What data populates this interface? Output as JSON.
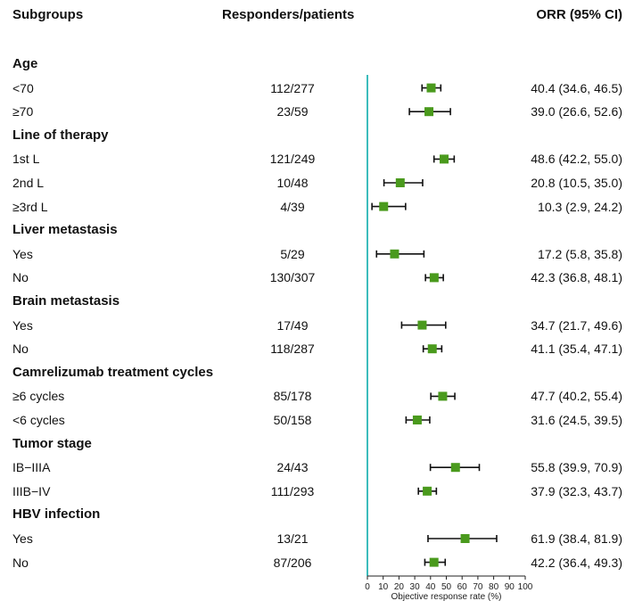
{
  "header": {
    "subgroups": "Subgroups",
    "responders": "Responders/patients",
    "orr": "ORR (95% CI)"
  },
  "colors": {
    "marker": "#4a9a1d",
    "reference_line": "#3cbcbc",
    "whisker": "#111111"
  },
  "chart_data": {
    "type": "forest",
    "xlabel": "Objective response rate (%)",
    "xlim": [
      0,
      100
    ],
    "xticks": [
      "0",
      "10",
      "20",
      "30",
      "40",
      "50",
      "60",
      "70",
      "80",
      "90",
      "100"
    ],
    "reference_value": 0,
    "rows": [
      {
        "kind": "group",
        "label": "Age"
      },
      {
        "kind": "item",
        "label": "<70",
        "ratio": "112/277",
        "orr_text": "40.4 (34.6, 46.5)",
        "est": 40.4,
        "lo": 34.6,
        "hi": 46.5
      },
      {
        "kind": "item",
        "label": "≥70",
        "ratio": "23/59",
        "orr_text": "39.0 (26.6, 52.6)",
        "est": 39.0,
        "lo": 26.6,
        "hi": 52.6
      },
      {
        "kind": "group",
        "label": "Line of therapy"
      },
      {
        "kind": "item",
        "label": "1st L",
        "ratio": "121/249",
        "orr_text": "48.6 (42.2, 55.0)",
        "est": 48.6,
        "lo": 42.2,
        "hi": 55.0
      },
      {
        "kind": "item",
        "label": "2nd L",
        "ratio": "10/48",
        "orr_text": "20.8 (10.5, 35.0)",
        "est": 20.8,
        "lo": 10.5,
        "hi": 35.0
      },
      {
        "kind": "item",
        "label": "≥3rd L",
        "ratio": "4/39",
        "orr_text": "10.3 (2.9, 24.2)",
        "est": 10.3,
        "lo": 2.9,
        "hi": 24.2
      },
      {
        "kind": "group",
        "label": "Liver metastasis"
      },
      {
        "kind": "item",
        "label": "Yes",
        "ratio": "5/29",
        "orr_text": "17.2 (5.8, 35.8)",
        "est": 17.2,
        "lo": 5.8,
        "hi": 35.8
      },
      {
        "kind": "item",
        "label": "No",
        "ratio": "130/307",
        "orr_text": "42.3 (36.8, 48.1)",
        "est": 42.3,
        "lo": 36.8,
        "hi": 48.1
      },
      {
        "kind": "group",
        "label": "Brain metastasis"
      },
      {
        "kind": "item",
        "label": "Yes",
        "ratio": "17/49",
        "orr_text": "34.7 (21.7, 49.6)",
        "est": 34.7,
        "lo": 21.7,
        "hi": 49.6
      },
      {
        "kind": "item",
        "label": "No",
        "ratio": "118/287",
        "orr_text": "41.1 (35.4, 47.1)",
        "est": 41.1,
        "lo": 35.4,
        "hi": 47.1
      },
      {
        "kind": "group",
        "label": "Camrelizumab treatment cycles"
      },
      {
        "kind": "item",
        "label": "≥6 cycles",
        "ratio": "85/178",
        "orr_text": "47.7 (40.2, 55.4)",
        "est": 47.7,
        "lo": 40.2,
        "hi": 55.4
      },
      {
        "kind": "item",
        "label": "<6 cycles",
        "ratio": "50/158",
        "orr_text": "31.6 (24.5, 39.5)",
        "est": 31.6,
        "lo": 24.5,
        "hi": 39.5
      },
      {
        "kind": "group",
        "label": "Tumor stage"
      },
      {
        "kind": "item",
        "label": "IB−IIIA",
        "ratio": "24/43",
        "orr_text": "55.8 (39.9, 70.9)",
        "est": 55.8,
        "lo": 39.9,
        "hi": 70.9
      },
      {
        "kind": "item",
        "label": "IIIB−IV",
        "ratio": "111/293",
        "orr_text": "37.9 (32.3, 43.7)",
        "est": 37.9,
        "lo": 32.3,
        "hi": 43.7
      },
      {
        "kind": "group",
        "label": "HBV infection"
      },
      {
        "kind": "item",
        "label": "Yes",
        "ratio": "13/21",
        "orr_text": "61.9 (38.4, 81.9)",
        "est": 61.9,
        "lo": 38.4,
        "hi": 81.9
      },
      {
        "kind": "item",
        "label": "No",
        "ratio": "87/206",
        "orr_text": "42.2 (36.4, 49.3)",
        "est": 42.2,
        "lo": 36.4,
        "hi": 49.3
      }
    ]
  }
}
